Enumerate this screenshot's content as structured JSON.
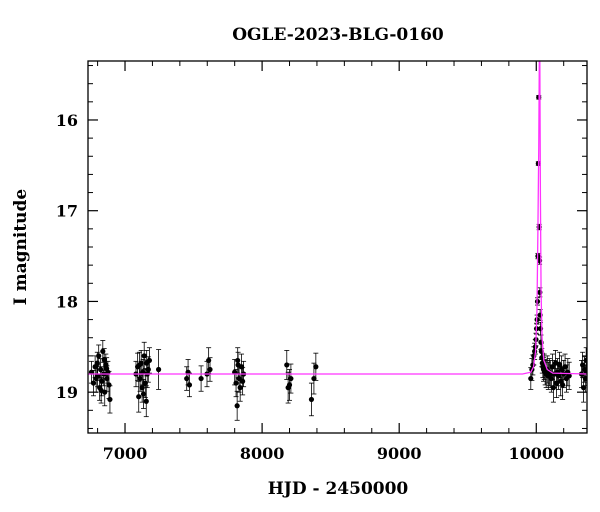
{
  "chart_data": {
    "type": "scatter",
    "title": "OGLE-2023-BLG-0160",
    "xlabel": "HJD - 2450000",
    "ylabel": "I magnitude",
    "xlim": [
      6730,
      10370
    ],
    "ylim": [
      19.45,
      15.35
    ],
    "y_inverted": true,
    "grid": false,
    "legend": "none",
    "xticks": [
      7000,
      8000,
      9000,
      10000
    ],
    "yticks": [
      16,
      17,
      18,
      19
    ],
    "x_minor_step": 200,
    "y_minor_step": 0.2,
    "colors": {
      "points": "#000000",
      "model": "#ff33ff",
      "axes": "#000000"
    },
    "baseline_mag": 18.8,
    "model": {
      "x": [
        6730,
        9900,
        9960,
        9980,
        9995,
        10005,
        10012,
        10018,
        10022,
        10026,
        10030,
        10035,
        10042,
        10055,
        10080,
        10120,
        10370
      ],
      "y": [
        18.8,
        18.8,
        18.78,
        18.72,
        18.55,
        18.1,
        17.2,
        16.3,
        15.35,
        15.35,
        16.8,
        17.9,
        18.4,
        18.65,
        18.75,
        18.79,
        18.8
      ]
    },
    "series": [
      {
        "x": [
          6755,
          6770,
          6782,
          6790,
          6800,
          6808,
          6815,
          6822,
          6830,
          6838,
          6845,
          6852,
          6860,
          6868,
          6875,
          6883,
          6890,
          6798,
          6826,
          6848,
          6866
        ],
        "y": [
          18.78,
          18.9,
          18.72,
          18.85,
          18.82,
          18.6,
          18.95,
          18.75,
          18.88,
          18.55,
          18.8,
          19.0,
          18.7,
          18.85,
          18.78,
          18.92,
          19.08,
          18.68,
          18.98,
          18.64,
          18.74
        ],
        "err": [
          0.12,
          0.14,
          0.12,
          0.15,
          0.12,
          0.12,
          0.14,
          0.12,
          0.16,
          0.12,
          0.13,
          0.15,
          0.12,
          0.14,
          0.12,
          0.15,
          0.15,
          0.12,
          0.14,
          0.12,
          0.12
        ]
      },
      {
        "x": [
          7080,
          7092,
          7100,
          7110,
          7118,
          7125,
          7132,
          7140,
          7148,
          7155,
          7162,
          7170,
          7178,
          7105,
          7135,
          7158,
          7245
        ],
        "y": [
          18.8,
          18.72,
          19.05,
          18.85,
          18.68,
          18.95,
          18.78,
          18.6,
          18.9,
          19.1,
          18.8,
          18.75,
          18.65,
          18.7,
          19.02,
          18.68,
          18.75
        ],
        "err": [
          0.14,
          0.15,
          0.17,
          0.14,
          0.14,
          0.16,
          0.14,
          0.15,
          0.16,
          0.17,
          0.15,
          0.14,
          0.14,
          0.14,
          0.16,
          0.14,
          0.22
        ]
      },
      {
        "x": [
          7450,
          7460,
          7470,
          7555,
          7598,
          7610,
          7620
        ],
        "y": [
          18.85,
          18.78,
          18.92,
          18.85,
          18.8,
          18.65,
          18.75
        ],
        "err": [
          0.13,
          0.14,
          0.13,
          0.14,
          0.14,
          0.14,
          0.13
        ]
      },
      {
        "x": [
          7800,
          7810,
          7818,
          7825,
          7832,
          7840,
          7850,
          7858,
          7865,
          7822
        ],
        "y": [
          18.78,
          18.9,
          19.15,
          18.7,
          18.85,
          18.95,
          18.72,
          18.88,
          18.8,
          18.65
        ],
        "err": [
          0.14,
          0.15,
          0.16,
          0.14,
          0.15,
          0.15,
          0.14,
          0.15,
          0.14,
          0.14
        ]
      },
      {
        "x": [
          8180,
          8190,
          8200,
          8210,
          8360,
          8378,
          8392
        ],
        "y": [
          18.7,
          18.95,
          18.92,
          18.85,
          19.08,
          18.85,
          18.72
        ],
        "err": [
          0.16,
          0.17,
          0.17,
          0.16,
          0.18,
          0.17,
          0.15
        ]
      },
      {
        "x": [
          9960,
          9968,
          9975,
          9982,
          9988,
          9993,
          9998,
          10002,
          10006,
          10009,
          10012,
          10015,
          10018,
          10021,
          10024,
          10026,
          10028,
          10031,
          10034,
          10037,
          10040,
          10044,
          10048,
          10053,
          10058,
          10065,
          10072,
          10080,
          10088,
          10095,
          10102
        ],
        "y": [
          18.85,
          18.75,
          18.7,
          18.6,
          18.55,
          18.5,
          18.42,
          18.3,
          18.2,
          18.0,
          17.5,
          16.48,
          15.75,
          17.18,
          17.55,
          17.9,
          18.15,
          18.3,
          18.45,
          18.55,
          18.62,
          18.68,
          18.72,
          18.75,
          18.72,
          18.78,
          18.8,
          18.75,
          18.82,
          18.78,
          18.8
        ],
        "err": [
          0.12,
          0.12,
          0.11,
          0.1,
          0.09,
          0.08,
          0.07,
          0.06,
          0.05,
          0.04,
          0.03,
          0.02,
          0.02,
          0.03,
          0.04,
          0.05,
          0.06,
          0.07,
          0.08,
          0.09,
          0.1,
          0.11,
          0.12,
          0.13,
          0.14,
          0.14,
          0.15,
          0.15,
          0.15,
          0.15,
          0.15
        ]
      },
      {
        "x": [
          10110,
          10118,
          10125,
          10132,
          10140,
          10148,
          10155,
          10162,
          10170,
          10178,
          10185,
          10192,
          10200,
          10210,
          10220,
          10230,
          10240
        ],
        "y": [
          18.85,
          18.72,
          18.95,
          18.8,
          18.68,
          18.9,
          18.78,
          18.82,
          18.7,
          18.88,
          18.75,
          18.92,
          18.8,
          18.72,
          18.85,
          18.78,
          18.82
        ],
        "err": [
          0.15,
          0.14,
          0.16,
          0.15,
          0.14,
          0.16,
          0.15,
          0.15,
          0.14,
          0.16,
          0.15,
          0.16,
          0.15,
          0.14,
          0.15,
          0.15,
          0.15
        ]
      },
      {
        "x": [
          10330,
          10338,
          10345,
          10352,
          10358,
          10364,
          10368
        ],
        "y": [
          18.8,
          18.7,
          18.95,
          18.75,
          18.85,
          18.65,
          18.78
        ],
        "err": [
          0.15,
          0.14,
          0.16,
          0.14,
          0.15,
          0.14,
          0.15
        ]
      }
    ]
  }
}
